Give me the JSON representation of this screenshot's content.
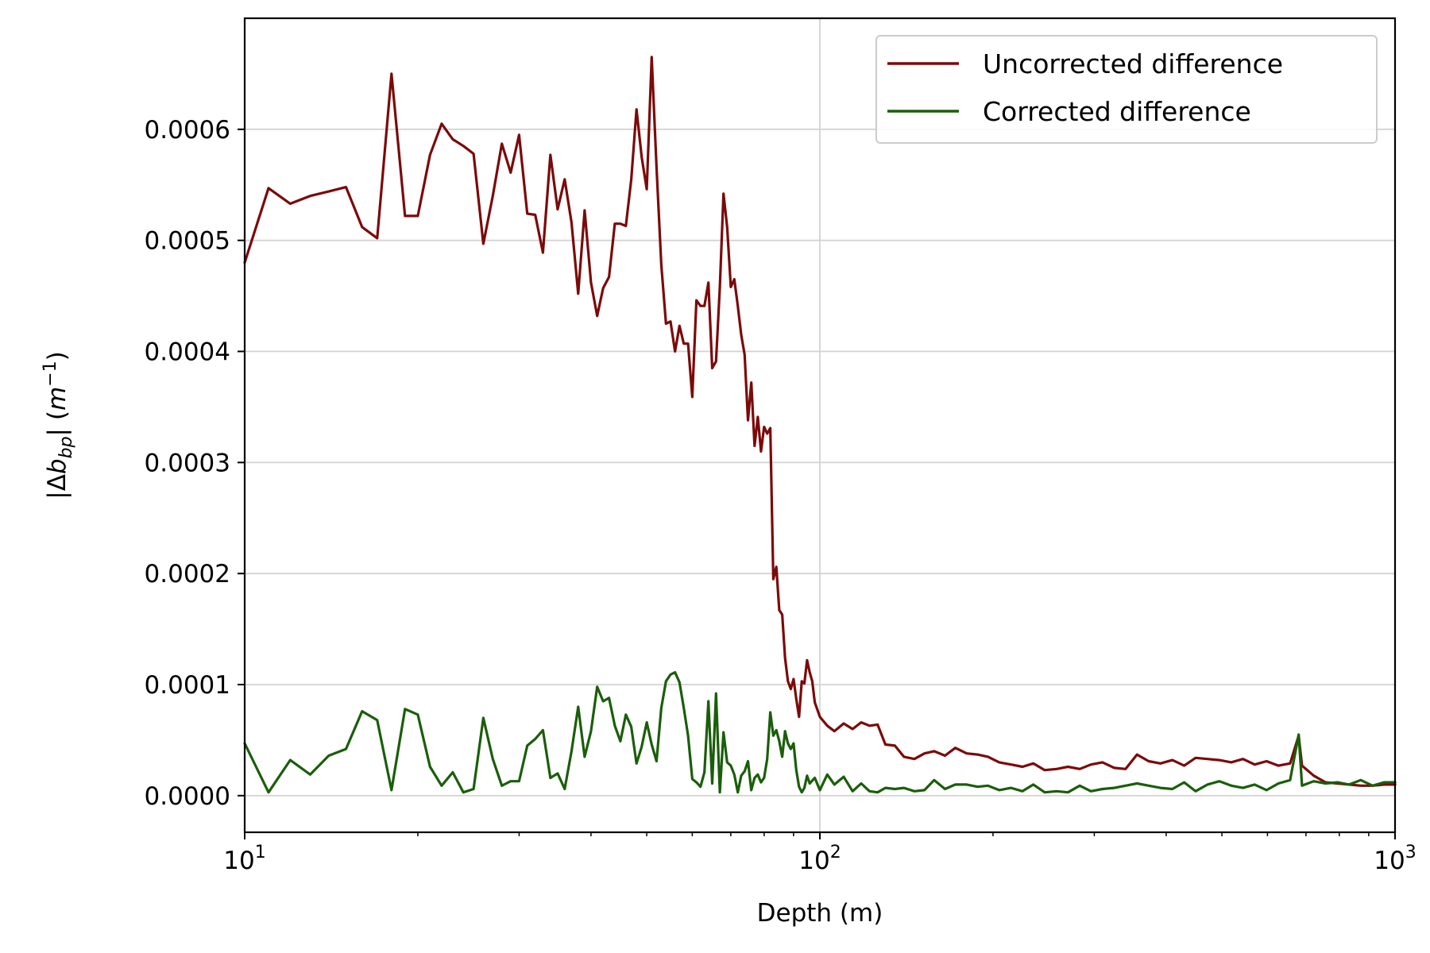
{
  "chart_data": {
    "type": "line",
    "xlabel": "Depth (m)",
    "ylabel_parts": {
      "abs_open": "|Δ",
      "b": "b",
      "sub": "bp",
      "abs_close": "|",
      "unit_open": " (",
      "m": "m",
      "sup": "−1",
      "unit_close": ")"
    },
    "x_scale": "log",
    "xlim": [
      10,
      1000
    ],
    "ylim": [
      -3.3e-05,
      0.0007
    ],
    "x_ticks": [
      {
        "value": 10,
        "base": "10",
        "exp": "1"
      },
      {
        "value": 100,
        "base": "10",
        "exp": "2"
      },
      {
        "value": 1000,
        "base": "10",
        "exp": "3"
      }
    ],
    "y_ticks": [
      {
        "value": 0.0,
        "label": "0.0000"
      },
      {
        "value": 0.0001,
        "label": "0.0001"
      },
      {
        "value": 0.0002,
        "label": "0.0002"
      },
      {
        "value": 0.0003,
        "label": "0.0003"
      },
      {
        "value": 0.0004,
        "label": "0.0004"
      },
      {
        "value": 0.0005,
        "label": "0.0005"
      },
      {
        "value": 0.0006,
        "label": "0.0006"
      }
    ],
    "grid": true,
    "legend_position": "top-right",
    "series": [
      {
        "name": "Uncorrected difference",
        "color": "#7b0a0a",
        "points": [
          [
            10.0,
            0.00048
          ],
          [
            11.0,
            0.000547
          ],
          [
            12.0,
            0.000533
          ],
          [
            13.0,
            0.00054
          ],
          [
            14.0,
            0.000544
          ],
          [
            15.0,
            0.000548
          ],
          [
            16.0,
            0.000512
          ],
          [
            17.0,
            0.000502
          ],
          [
            18.0,
            0.00065
          ],
          [
            19.0,
            0.000522
          ],
          [
            20.0,
            0.000522
          ],
          [
            21.0,
            0.000577
          ],
          [
            22.0,
            0.000605
          ],
          [
            23.0,
            0.000591
          ],
          [
            24.0,
            0.000585
          ],
          [
            25.0,
            0.000578
          ],
          [
            26.0,
            0.000497
          ],
          [
            27.0,
            0.00054
          ],
          [
            28.0,
            0.000587
          ],
          [
            29.0,
            0.000561
          ],
          [
            30.0,
            0.000595
          ],
          [
            31.0,
            0.000524
          ],
          [
            32.0,
            0.000523
          ],
          [
            33.0,
            0.000489
          ],
          [
            34.0,
            0.000577
          ],
          [
            35.0,
            0.000528
          ],
          [
            36.0,
            0.000555
          ],
          [
            37.0,
            0.000516
          ],
          [
            38.0,
            0.000452
          ],
          [
            39.0,
            0.000527
          ],
          [
            40.0,
            0.000462
          ],
          [
            41.0,
            0.000432
          ],
          [
            42.0,
            0.000457
          ],
          [
            43.0,
            0.000467
          ],
          [
            44.0,
            0.000515
          ],
          [
            45.0,
            0.000515
          ],
          [
            46.0,
            0.000513
          ],
          [
            47.0,
            0.000555
          ],
          [
            48.0,
            0.000618
          ],
          [
            49.0,
            0.000575
          ],
          [
            50.0,
            0.000546
          ],
          [
            51.0,
            0.000665
          ],
          [
            52.0,
            0.000566
          ],
          [
            53.0,
            0.000478
          ],
          [
            54.0,
            0.000425
          ],
          [
            55.0,
            0.000427
          ],
          [
            56.0,
            0.0004
          ],
          [
            57.0,
            0.000423
          ],
          [
            58.0,
            0.000407
          ],
          [
            59.0,
            0.000407
          ],
          [
            60.0,
            0.000359
          ],
          [
            61.0,
            0.000446
          ],
          [
            62.0,
            0.000441
          ],
          [
            63.0,
            0.000441
          ],
          [
            64.0,
            0.000462
          ],
          [
            65.0,
            0.000385
          ],
          [
            66.0,
            0.000391
          ],
          [
            67.0,
            0.000458
          ],
          [
            68.0,
            0.000542
          ],
          [
            69.0,
            0.000512
          ],
          [
            70.0,
            0.000458
          ],
          [
            71.0,
            0.000465
          ],
          [
            72.0,
            0.000441
          ],
          [
            73.0,
            0.000415
          ],
          [
            74.0,
            0.000397
          ],
          [
            75.0,
            0.000338
          ],
          [
            76.0,
            0.000372
          ],
          [
            77.0,
            0.000315
          ],
          [
            78.0,
            0.000341
          ],
          [
            79.0,
            0.00031
          ],
          [
            80.0,
            0.000332
          ],
          [
            81.0,
            0.000326
          ],
          [
            82.0,
            0.000331
          ],
          [
            83.0,
            0.000195
          ],
          [
            84.0,
            0.000206
          ],
          [
            85.0,
            0.000167
          ],
          [
            86.0,
            0.000163
          ],
          [
            87.0,
            0.000124
          ],
          [
            88.0,
            0.000103
          ],
          [
            89.0,
            9.6e-05
          ],
          [
            90.0,
            0.000105
          ],
          [
            91.0,
            8.7e-05
          ],
          [
            92.0,
            7.1e-05
          ],
          [
            93.0,
            0.000103
          ],
          [
            94.0,
            0.000101
          ],
          [
            95.0,
            0.000122
          ],
          [
            96.0,
            0.000111
          ],
          [
            97.0,
            0.000103
          ],
          [
            98.0,
            8.4e-05
          ],
          [
            100.0,
            7.1e-05
          ],
          [
            103.0,
            6.3e-05
          ],
          [
            106.0,
            5.8e-05
          ],
          [
            110.0,
            6.5e-05
          ],
          [
            114.0,
            6e-05
          ],
          [
            118.0,
            6.6e-05
          ],
          [
            122.0,
            6.3e-05
          ],
          [
            126.0,
            6.4e-05
          ],
          [
            130.0,
            4.6e-05
          ],
          [
            135.0,
            4.5e-05
          ],
          [
            140.0,
            3.5e-05
          ],
          [
            146.0,
            3.3e-05
          ],
          [
            152.0,
            3.8e-05
          ],
          [
            158.0,
            4e-05
          ],
          [
            165.0,
            3.6e-05
          ],
          [
            172.0,
            4.3e-05
          ],
          [
            180.0,
            3.8e-05
          ],
          [
            188.0,
            3.7e-05
          ],
          [
            196.0,
            3.5e-05
          ],
          [
            205.0,
            3e-05
          ],
          [
            215.0,
            2.8e-05
          ],
          [
            225.0,
            2.6e-05
          ],
          [
            235.0,
            2.9e-05
          ],
          [
            246.0,
            2.3e-05
          ],
          [
            258.0,
            2.4e-05
          ],
          [
            270.0,
            2.6e-05
          ],
          [
            283.0,
            2.4e-05
          ],
          [
            296.0,
            2.8e-05
          ],
          [
            310.0,
            3e-05
          ],
          [
            325.0,
            2.5e-05
          ],
          [
            340.0,
            2.4e-05
          ],
          [
            356.0,
            3.7e-05
          ],
          [
            373.0,
            3.1e-05
          ],
          [
            391.0,
            2.9e-05
          ],
          [
            410.0,
            3.2e-05
          ],
          [
            430.0,
            2.7e-05
          ],
          [
            450.0,
            3.4e-05
          ],
          [
            472.0,
            3.3e-05
          ],
          [
            495.0,
            3.2e-05
          ],
          [
            519.0,
            3e-05
          ],
          [
            544.0,
            3.3e-05
          ],
          [
            570.0,
            2.8e-05
          ],
          [
            598.0,
            3.1e-05
          ],
          [
            627.0,
            2.7e-05
          ],
          [
            657.0,
            2.9e-05
          ],
          [
            680.0,
            5.4e-05
          ],
          [
            689.0,
            2.7e-05
          ],
          [
            722.0,
            1.8e-05
          ],
          [
            757.0,
            1.2e-05
          ],
          [
            794.0,
            1.1e-05
          ],
          [
            832.0,
            1e-05
          ],
          [
            872.0,
            9e-06
          ],
          [
            914.0,
            9e-06
          ],
          [
            958.0,
            1e-05
          ],
          [
            1000.0,
            1e-05
          ]
        ]
      },
      {
        "name": "Corrected difference",
        "color": "#1a5e0a",
        "points": [
          [
            10.0,
            4.7e-05
          ],
          [
            11.0,
            3e-06
          ],
          [
            12.0,
            3.2e-05
          ],
          [
            13.0,
            1.9e-05
          ],
          [
            14.0,
            3.6e-05
          ],
          [
            15.0,
            4.2e-05
          ],
          [
            16.0,
            7.6e-05
          ],
          [
            17.0,
            6.8e-05
          ],
          [
            18.0,
            5e-06
          ],
          [
            19.0,
            7.8e-05
          ],
          [
            20.0,
            7.3e-05
          ],
          [
            21.0,
            2.6e-05
          ],
          [
            22.0,
            9e-06
          ],
          [
            23.0,
            2.1e-05
          ],
          [
            24.0,
            3e-06
          ],
          [
            25.0,
            6e-06
          ],
          [
            26.0,
            7e-05
          ],
          [
            27.0,
            3.3e-05
          ],
          [
            28.0,
            9e-06
          ],
          [
            29.0,
            1.3e-05
          ],
          [
            30.0,
            1.3e-05
          ],
          [
            31.0,
            4.5e-05
          ],
          [
            32.0,
            5.1e-05
          ],
          [
            33.0,
            5.9e-05
          ],
          [
            34.0,
            1.6e-05
          ],
          [
            35.0,
            2e-05
          ],
          [
            36.0,
            6e-06
          ],
          [
            37.0,
            4e-05
          ],
          [
            38.0,
            8e-05
          ],
          [
            39.0,
            3.5e-05
          ],
          [
            40.0,
            5.8e-05
          ],
          [
            41.0,
            9.8e-05
          ],
          [
            42.0,
            8.5e-05
          ],
          [
            43.0,
            8.8e-05
          ],
          [
            44.0,
            6.3e-05
          ],
          [
            45.0,
            4.9e-05
          ],
          [
            46.0,
            7.3e-05
          ],
          [
            47.0,
            6.2e-05
          ],
          [
            48.0,
            2.9e-05
          ],
          [
            49.0,
            4.4e-05
          ],
          [
            50.0,
            6.6e-05
          ],
          [
            51.0,
            4.6e-05
          ],
          [
            52.0,
            3.1e-05
          ],
          [
            53.0,
            7.9e-05
          ],
          [
            54.0,
            0.000103
          ],
          [
            55.0,
            0.000109
          ],
          [
            56.0,
            0.000111
          ],
          [
            57.0,
            0.000102
          ],
          [
            58.0,
            7.9e-05
          ],
          [
            59.0,
            5.4e-05
          ],
          [
            60.0,
            1.5e-05
          ],
          [
            61.0,
            1.2e-05
          ],
          [
            62.0,
            8e-06
          ],
          [
            63.0,
            2.1e-05
          ],
          [
            64.0,
            8.5e-05
          ],
          [
            65.0,
            1.1e-05
          ],
          [
            66.0,
            9.2e-05
          ],
          [
            67.0,
            3e-06
          ],
          [
            68.0,
            5.7e-05
          ],
          [
            69.0,
            3e-05
          ],
          [
            70.0,
            2.7e-05
          ],
          [
            71.0,
            1.9e-05
          ],
          [
            72.0,
            3e-06
          ],
          [
            73.0,
            1.8e-05
          ],
          [
            74.0,
            2.2e-05
          ],
          [
            75.0,
            3.1e-05
          ],
          [
            76.0,
            5e-06
          ],
          [
            77.0,
            1.6e-05
          ],
          [
            78.0,
            1.9e-05
          ],
          [
            79.0,
            1.2e-05
          ],
          [
            80.0,
            1.6e-05
          ],
          [
            81.0,
            3.3e-05
          ],
          [
            82.0,
            7.5e-05
          ],
          [
            83.0,
            5.4e-05
          ],
          [
            84.0,
            5.9e-05
          ],
          [
            85.0,
            4.9e-05
          ],
          [
            86.0,
            3.5e-05
          ],
          [
            87.0,
            5.8e-05
          ],
          [
            88.0,
            4.7e-05
          ],
          [
            89.0,
            4.2e-05
          ],
          [
            90.0,
            4.7e-05
          ],
          [
            91.0,
            2.3e-05
          ],
          [
            92.0,
            8e-06
          ],
          [
            93.0,
            3e-06
          ],
          [
            94.0,
            7e-06
          ],
          [
            95.0,
            1.8e-05
          ],
          [
            96.0,
            1.1e-05
          ],
          [
            98.0,
            1.6e-05
          ],
          [
            100.0,
            5e-06
          ],
          [
            103.0,
            1.9e-05
          ],
          [
            106.0,
            1e-05
          ],
          [
            110.0,
            1.7e-05
          ],
          [
            114.0,
            4e-06
          ],
          [
            118.0,
            1.1e-05
          ],
          [
            122.0,
            4e-06
          ],
          [
            126.0,
            3e-06
          ],
          [
            130.0,
            7e-06
          ],
          [
            135.0,
            6e-06
          ],
          [
            140.0,
            7e-06
          ],
          [
            146.0,
            4e-06
          ],
          [
            152.0,
            5e-06
          ],
          [
            158.0,
            1.4e-05
          ],
          [
            165.0,
            6e-06
          ],
          [
            172.0,
            1e-05
          ],
          [
            180.0,
            1e-05
          ],
          [
            188.0,
            8e-06
          ],
          [
            196.0,
            9e-06
          ],
          [
            205.0,
            5e-06
          ],
          [
            215.0,
            7e-06
          ],
          [
            225.0,
            4e-06
          ],
          [
            235.0,
            1e-05
          ],
          [
            246.0,
            3e-06
          ],
          [
            258.0,
            4e-06
          ],
          [
            270.0,
            3e-06
          ],
          [
            283.0,
            9e-06
          ],
          [
            296.0,
            4e-06
          ],
          [
            310.0,
            6e-06
          ],
          [
            325.0,
            7e-06
          ],
          [
            340.0,
            9e-06
          ],
          [
            356.0,
            1.1e-05
          ],
          [
            373.0,
            9e-06
          ],
          [
            391.0,
            7e-06
          ],
          [
            410.0,
            6e-06
          ],
          [
            430.0,
            1.2e-05
          ],
          [
            450.0,
            4e-06
          ],
          [
            472.0,
            1e-05
          ],
          [
            495.0,
            1.3e-05
          ],
          [
            519.0,
            9e-06
          ],
          [
            544.0,
            7e-06
          ],
          [
            570.0,
            1e-05
          ],
          [
            598.0,
            5e-06
          ],
          [
            627.0,
            1.1e-05
          ],
          [
            657.0,
            1.4e-05
          ],
          [
            680.0,
            5.5e-05
          ],
          [
            689.0,
            9e-06
          ],
          [
            722.0,
            1.3e-05
          ],
          [
            757.0,
            1.1e-05
          ],
          [
            794.0,
            1.2e-05
          ],
          [
            832.0,
            1e-05
          ],
          [
            872.0,
            1.4e-05
          ],
          [
            914.0,
            9e-06
          ],
          [
            958.0,
            1.2e-05
          ],
          [
            1000.0,
            1.2e-05
          ]
        ]
      }
    ]
  }
}
